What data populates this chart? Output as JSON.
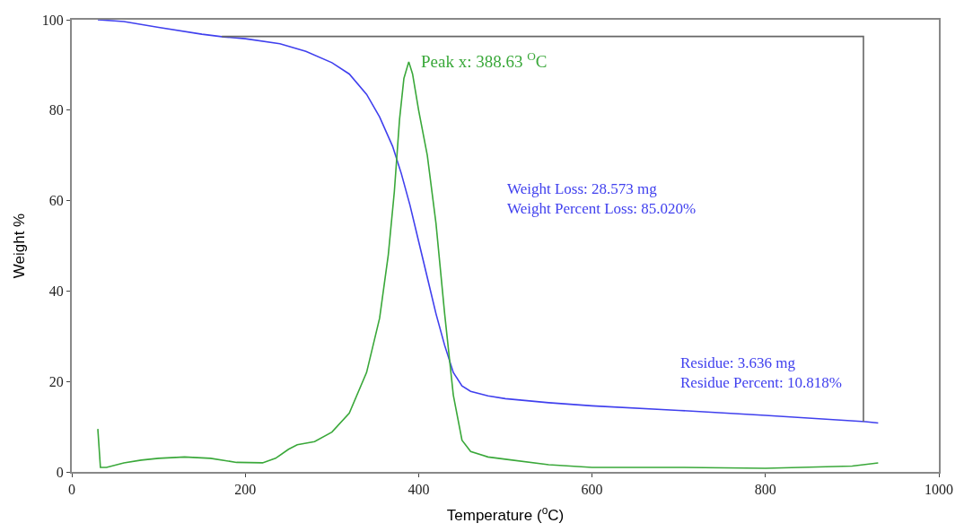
{
  "chart_data": {
    "type": "line",
    "xlabel": "Temperature ($^{o}$C)",
    "ylabel": "Weight %",
    "xlim": [
      0,
      1000
    ],
    "xticks": [
      0,
      200,
      400,
      600,
      800,
      1000
    ],
    "ylim": [
      0,
      100
    ],
    "yticks": [
      0,
      20,
      40,
      60,
      80,
      100
    ],
    "series": [
      {
        "color": "#4040ee",
        "x": [
          30,
          60,
          100,
          150,
          175,
          200,
          240,
          270,
          300,
          320,
          340,
          355,
          370,
          380,
          390,
          400,
          410,
          420,
          430,
          440,
          450,
          460,
          480,
          500,
          550,
          600,
          700,
          800,
          915,
          930
        ],
        "values": [
          100,
          99.6,
          98.3,
          96.8,
          96.2,
          95.8,
          94.7,
          93,
          90.5,
          88,
          83.5,
          78.5,
          72,
          66,
          59,
          51,
          43,
          35,
          28,
          22,
          19,
          17.8,
          16.8,
          16.2,
          15.3,
          14.6,
          13.6,
          12.5,
          11.1,
          10.8
        ]
      },
      {
        "color": "#3aa83a",
        "x": [
          30,
          33,
          40,
          60,
          80,
          100,
          130,
          160,
          190,
          220,
          235,
          250,
          260,
          280,
          300,
          320,
          340,
          355,
          365,
          372,
          378,
          383,
          388.63,
          393,
          400,
          410,
          420,
          430,
          440,
          450,
          460,
          480,
          500,
          550,
          600,
          700,
          800,
          900,
          930
        ],
        "values": [
          9.5,
          1,
          1,
          2,
          2.6,
          3,
          3.3,
          3,
          2.1,
          2,
          3,
          5,
          6,
          6.7,
          8.8,
          13,
          22,
          34,
          48,
          62,
          78,
          87,
          90.7,
          88,
          80,
          70,
          55,
          35,
          17,
          7,
          4.5,
          3.3,
          2.8,
          1.6,
          1,
          1,
          0.8,
          1.3,
          2
        ]
      },
      {
        "color": "#666666",
        "x": [
          173,
          913,
          913
        ],
        "values": [
          96.3,
          96.3,
          11.1
        ]
      }
    ],
    "annotations": [
      {
        "text": "Peak x: 388.63 $^{O}$C",
        "x": 388.63,
        "y": 90.7
      },
      "Weight Loss: 28.573 mg\nWeight Percent Loss: 85.020%",
      "Residue: 3.636 mg\nResidue Percent: 10.818%"
    ]
  }
}
